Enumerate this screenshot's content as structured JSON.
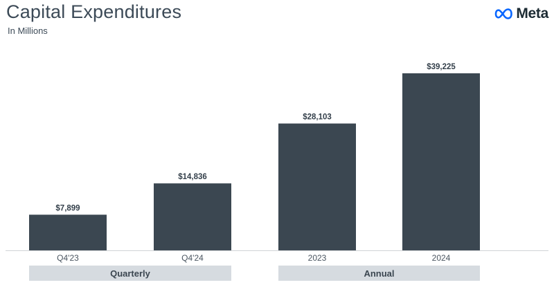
{
  "header": {
    "title": "Capital Expenditures",
    "subtitle": "In Millions",
    "logo_text": "Meta",
    "logo_color": "#0866ff"
  },
  "groups": {
    "quarterly": "Quarterly",
    "annual": "Annual"
  },
  "colors": {
    "bar": "#3b4751",
    "group_box": "#d6dbe0"
  },
  "chart_data": {
    "type": "bar",
    "title": "Capital Expenditures",
    "subtitle": "In Millions",
    "categories": [
      "Q4'23",
      "Q4'24",
      "2023",
      "2024"
    ],
    "values": [
      7899,
      14836,
      28103,
      39225
    ],
    "value_labels": [
      "$7,899",
      "$14,836",
      "$28,103",
      "$39,225"
    ],
    "category_groups": [
      {
        "name": "Quarterly",
        "categories": [
          "Q4'23",
          "Q4'24"
        ]
      },
      {
        "name": "Annual",
        "categories": [
          "2023",
          "2024"
        ]
      }
    ],
    "ylim": [
      0,
      39225
    ],
    "grid": false,
    "legend": "none"
  }
}
